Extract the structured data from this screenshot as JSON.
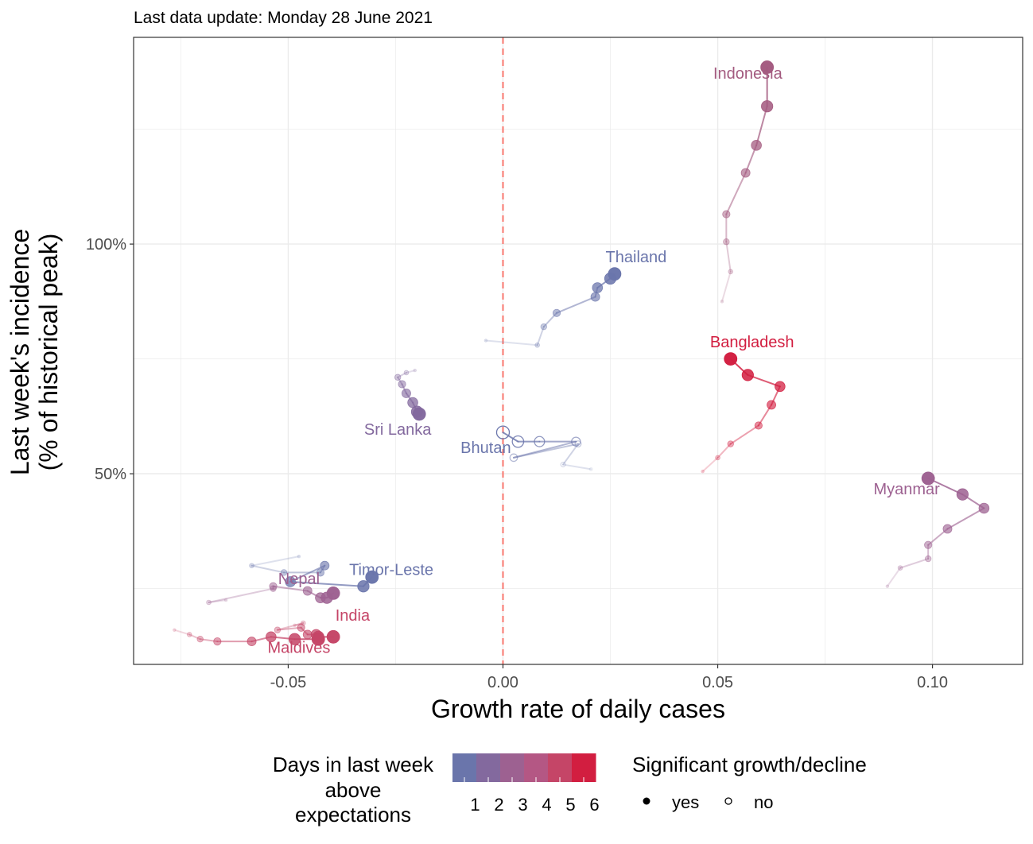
{
  "subtitle": "Last data update: Monday 28 June 2021",
  "chart_data": {
    "type": "scatter",
    "xlabel": "Growth rate of daily cases",
    "ylabel_lines": [
      "Last week's incidence",
      "(% of historical peak)"
    ],
    "x_ticks": [
      -0.05,
      0.0,
      0.05,
      0.1
    ],
    "x_tick_labels": [
      "-0.05",
      "0.00",
      "0.05",
      "0.10"
    ],
    "y_ticks": [
      50,
      100
    ],
    "y_tick_labels": [
      "50%",
      "100%"
    ],
    "xlim": [
      -0.086,
      0.121
    ],
    "ylim": [
      8.5,
      145
    ],
    "reference_line": {
      "x": 0,
      "color": "#f8766d",
      "style": "dashed"
    },
    "grid": true,
    "legend_position": "bottom",
    "legend_color": {
      "title_lines": [
        "Days in last week",
        "above",
        "expectations"
      ],
      "labels": [
        "1",
        "2",
        "3",
        "4",
        "5",
        "6"
      ],
      "colors": [
        "#6a75ab",
        "#83699e",
        "#9d6191",
        "#b45784",
        "#c54567",
        "#d21e40"
      ]
    },
    "legend_shape": {
      "title": "Significant growth/decline",
      "items": [
        {
          "label": "yes",
          "filled": true
        },
        {
          "label": "no",
          "filled": false
        }
      ]
    },
    "series": [
      {
        "name": "Indonesia",
        "color": "#a35a7f",
        "label": {
          "x": 0.057,
          "y": 136
        },
        "points": [
          [
            0.051,
            87.5,
            1
          ],
          [
            0.053,
            94,
            1
          ],
          [
            0.052,
            100.5,
            1
          ],
          [
            0.052,
            106.5,
            1
          ],
          [
            0.0565,
            115.5,
            1
          ],
          [
            0.059,
            121.5,
            1
          ],
          [
            0.0615,
            130,
            1
          ],
          [
            0.0615,
            138.5,
            1
          ]
        ]
      },
      {
        "name": "Thailand",
        "color": "#6a75ab",
        "label": {
          "x": 0.031,
          "y": 96
        },
        "points": [
          [
            -0.004,
            79,
            1
          ],
          [
            0.008,
            78,
            1
          ],
          [
            0.0095,
            82,
            1
          ],
          [
            0.0125,
            85,
            1
          ],
          [
            0.0215,
            88.5,
            1
          ],
          [
            0.022,
            90.5,
            1
          ],
          [
            0.025,
            92.5,
            1
          ],
          [
            0.026,
            93.5,
            1
          ]
        ]
      },
      {
        "name": "Bangladesh",
        "color": "#d21e40",
        "label": {
          "x": 0.058,
          "y": 77.5
        },
        "points": [
          [
            0.0465,
            50.5,
            1
          ],
          [
            0.05,
            53.5,
            1
          ],
          [
            0.053,
            56.5,
            1
          ],
          [
            0.0595,
            60.5,
            1
          ],
          [
            0.0625,
            65,
            1
          ],
          [
            0.0645,
            69,
            1
          ],
          [
            0.057,
            71.5,
            1
          ],
          [
            0.053,
            75,
            1
          ]
        ]
      },
      {
        "name": "Sri Lanka",
        "color": "#83699e",
        "label": {
          "x": -0.0245,
          "y": 58.5
        },
        "points": [
          [
            -0.0205,
            72.5,
            1
          ],
          [
            -0.0225,
            72,
            1
          ],
          [
            -0.0245,
            71,
            1
          ],
          [
            -0.0235,
            69.5,
            1
          ],
          [
            -0.0225,
            67.5,
            1
          ],
          [
            -0.021,
            65.5,
            1
          ],
          [
            -0.02,
            63.5,
            1
          ],
          [
            -0.0195,
            63,
            1
          ]
        ]
      },
      {
        "name": "Bhutan",
        "color": "#6a75ab",
        "label": {
          "x": -0.004,
          "y": 54.5
        },
        "points": [
          [
            0.0205,
            51,
            0
          ],
          [
            0.014,
            52,
            0
          ],
          [
            0.0175,
            56.5,
            0
          ],
          [
            0.0025,
            53.5,
            0
          ],
          [
            0.017,
            57,
            0
          ],
          [
            0.0085,
            57,
            0
          ],
          [
            0.0035,
            57,
            0
          ],
          [
            0.0,
            59,
            0
          ]
        ]
      },
      {
        "name": "Myanmar",
        "color": "#9d6191",
        "label": {
          "x": 0.094,
          "y": 45.5
        },
        "points": [
          [
            0.0895,
            25.5,
            1
          ],
          [
            0.0925,
            29.5,
            1
          ],
          [
            0.099,
            31.5,
            1
          ],
          [
            0.099,
            34.5,
            1
          ],
          [
            0.1035,
            38,
            1
          ],
          [
            0.112,
            42.5,
            1
          ],
          [
            0.107,
            45.5,
            1
          ],
          [
            0.099,
            49,
            1
          ]
        ]
      },
      {
        "name": "Timor-Leste",
        "color": "#6a75ab",
        "label": {
          "x": -0.026,
          "y": 28
        },
        "points": [
          [
            -0.0475,
            32,
            1
          ],
          [
            -0.0585,
            30,
            1
          ],
          [
            -0.051,
            28.5,
            1
          ],
          [
            -0.0425,
            28.5,
            1
          ],
          [
            -0.0415,
            30,
            1
          ],
          [
            -0.0495,
            26.5,
            1
          ],
          [
            -0.0325,
            25.5,
            1
          ],
          [
            -0.0305,
            27.5,
            1
          ]
        ]
      },
      {
        "name": "Nepal",
        "color": "#9d6191",
        "label": {
          "x": -0.0475,
          "y": 26
        },
        "points": [
          [
            -0.0645,
            22.5,
            1
          ],
          [
            -0.0685,
            22,
            1
          ],
          [
            -0.0535,
            25,
            1
          ],
          [
            -0.0535,
            25.5,
            1
          ],
          [
            -0.0455,
            24.5,
            1
          ],
          [
            -0.0425,
            23,
            1
          ],
          [
            -0.041,
            23,
            1
          ],
          [
            -0.0395,
            24,
            1
          ]
        ]
      },
      {
        "name": "India",
        "color": "#c54567",
        "label": {
          "x": -0.035,
          "y": 18
        },
        "points": [
          [
            -0.0485,
            17,
            1
          ],
          [
            -0.0465,
            17.5,
            1
          ],
          [
            -0.0525,
            16,
            1
          ],
          [
            -0.047,
            16.5,
            1
          ],
          [
            -0.0455,
            15,
            1
          ],
          [
            -0.0435,
            15,
            1
          ],
          [
            -0.043,
            14.5,
            1
          ],
          [
            -0.0395,
            14.5,
            1
          ]
        ]
      },
      {
        "name": "Maldives",
        "color": "#c54567",
        "label": {
          "x": -0.0475,
          "y": 11
        },
        "points": [
          [
            -0.0765,
            16,
            1
          ],
          [
            -0.073,
            15,
            1
          ],
          [
            -0.0705,
            14,
            1
          ],
          [
            -0.0665,
            13.5,
            1
          ],
          [
            -0.0585,
            13.5,
            1
          ],
          [
            -0.054,
            14.5,
            1
          ],
          [
            -0.0485,
            14,
            1
          ],
          [
            -0.043,
            14,
            1
          ]
        ]
      }
    ]
  }
}
